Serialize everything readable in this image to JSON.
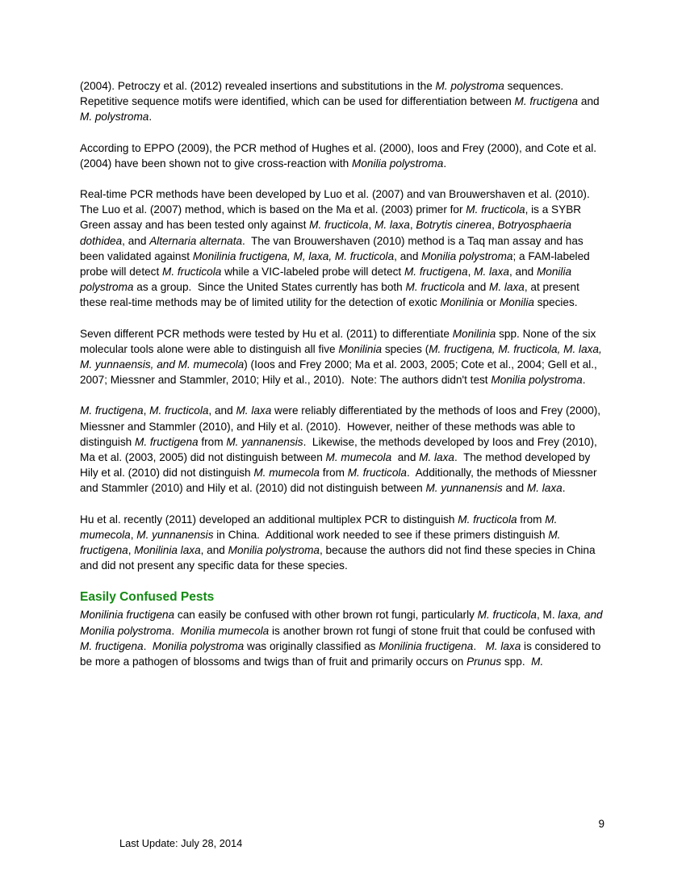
{
  "document": {
    "heading": "Easily Confused Pests",
    "heading_color": "#128a12",
    "footer": {
      "last_update": "Last Update: July 28, 2014",
      "page_number": "9"
    },
    "paragraphs": [
      {
        "segments": [
          {
            "t": "(2004). Petroczy et al. (2012) revealed insertions and substitutions in the "
          },
          {
            "t": "M. polystroma",
            "i": true
          },
          {
            "t": " sequences.  Repetitive sequence motifs were identified, which can be used for differentiation between "
          },
          {
            "t": "M. fructigena",
            "i": true
          },
          {
            "t": " and "
          },
          {
            "t": "M. polystroma",
            "i": true
          },
          {
            "t": "."
          }
        ]
      },
      {
        "segments": [
          {
            "t": "According to EPPO (2009), the PCR method of Hughes et al. (2000), Ioos and Frey (2000), and Cote et al. (2004) have been shown not to give cross-reaction with "
          },
          {
            "t": "Monilia polystroma",
            "i": true
          },
          {
            "t": "."
          }
        ]
      },
      {
        "segments": [
          {
            "t": "Real-time PCR methods have been developed by Luo et al. (2007) and van Brouwershaven et al. (2010).  The Luo et al. (2007) method, which is based on the Ma et al. (2003) primer for "
          },
          {
            "t": "M. fructicola",
            "i": true
          },
          {
            "t": ", is a SYBR Green assay and has been tested only against "
          },
          {
            "t": "M. fructicola",
            "i": true
          },
          {
            "t": ", "
          },
          {
            "t": "M. laxa",
            "i": true
          },
          {
            "t": ", "
          },
          {
            "t": "Botrytis cinerea",
            "i": true
          },
          {
            "t": ", "
          },
          {
            "t": "Botryosphaeria dothidea",
            "i": true
          },
          {
            "t": ", and "
          },
          {
            "t": "Alternaria alternata",
            "i": true
          },
          {
            "t": ".  The van Brouwershaven (2010) method is a Taq man assay and has been validated against "
          },
          {
            "t": "Monilinia fructigena, M, laxa, M. fructicola",
            "i": true
          },
          {
            "t": ", and "
          },
          {
            "t": "Monilia polystroma",
            "i": true
          },
          {
            "t": "; a FAM-labeled probe will detect "
          },
          {
            "t": "M. fructicola",
            "i": true
          },
          {
            "t": " while a VIC-labeled probe will detect "
          },
          {
            "t": "M. fructigena",
            "i": true
          },
          {
            "t": ", "
          },
          {
            "t": "M. laxa",
            "i": true
          },
          {
            "t": ", and "
          },
          {
            "t": "Monilia polystroma",
            "i": true
          },
          {
            "t": " as a group.  Since the United States currently has both "
          },
          {
            "t": "M. fructicola",
            "i": true
          },
          {
            "t": " and "
          },
          {
            "t": "M. laxa",
            "i": true
          },
          {
            "t": ", at present these real-time methods may be of limited utility for the detection of exotic "
          },
          {
            "t": "Monilinia",
            "i": true
          },
          {
            "t": " or "
          },
          {
            "t": "Monilia",
            "i": true
          },
          {
            "t": " species."
          }
        ]
      },
      {
        "segments": [
          {
            "t": "Seven different PCR methods were tested by Hu et al. (2011) to differentiate "
          },
          {
            "t": "Monilinia",
            "i": true
          },
          {
            "t": " spp. None of the six molecular tools alone were able to distinguish all five "
          },
          {
            "t": "Monilinia",
            "i": true
          },
          {
            "t": " species ("
          },
          {
            "t": "M. fructigena, M. fructicola, M. laxa, M. yunnaensis, and M. mumecola",
            "i": true
          },
          {
            "t": ") (Ioos and Frey 2000; Ma et al. 2003, 2005; Cote et al., 2004; Gell et al., 2007; Miessner and Stammler, 2010; Hily et al., 2010).  Note: The authors didn't test "
          },
          {
            "t": "Monilia polystroma",
            "i": true
          },
          {
            "t": "."
          }
        ]
      },
      {
        "segments": [
          {
            "t": "M. fructigena",
            "i": true
          },
          {
            "t": ", "
          },
          {
            "t": "M. fructicola",
            "i": true
          },
          {
            "t": ", and "
          },
          {
            "t": "M. laxa",
            "i": true
          },
          {
            "t": " were reliably differentiated by the methods of Ioos and Frey (2000), Miessner and Stammler (2010), and Hily et al. (2010).  However, neither of these methods was able to distinguish "
          },
          {
            "t": "M. fructigena",
            "i": true
          },
          {
            "t": " from "
          },
          {
            "t": "M. yannanensis",
            "i": true
          },
          {
            "t": ".  Likewise, the methods developed by Ioos and Frey (2010), Ma et al. (2003, 2005) did not distinguish between "
          },
          {
            "t": "M. mumecola",
            "i": true
          },
          {
            "t": "  and "
          },
          {
            "t": "M. laxa",
            "i": true
          },
          {
            "t": ".  The method developed by Hily et al. (2010) did not distinguish "
          },
          {
            "t": "M. mumecola",
            "i": true
          },
          {
            "t": " from "
          },
          {
            "t": "M. fructicola",
            "i": true
          },
          {
            "t": ".  Additionally, the methods of Miessner and Stammler (2010) and Hily et al. (2010) did not distinguish between "
          },
          {
            "t": "M. yunnanensis",
            "i": true
          },
          {
            "t": " and "
          },
          {
            "t": "M. laxa",
            "i": true
          },
          {
            "t": "."
          }
        ]
      },
      {
        "segments": [
          {
            "t": "Hu et al. recently (2011) developed an additional multiplex PCR to distinguish "
          },
          {
            "t": "M. fructicola",
            "i": true
          },
          {
            "t": " from "
          },
          {
            "t": "M. mumecola",
            "i": true
          },
          {
            "t": ", "
          },
          {
            "t": "M. yunnanensis",
            "i": true
          },
          {
            "t": " in China.  Additional work needed to see if these primers distinguish "
          },
          {
            "t": "M. fructigena",
            "i": true
          },
          {
            "t": ", "
          },
          {
            "t": "Monilinia laxa",
            "i": true
          },
          {
            "t": ", and "
          },
          {
            "t": "Monilia polystroma",
            "i": true
          },
          {
            "t": ", because the authors did not find these species in China and did not present any specific data for these species."
          }
        ]
      },
      {
        "segments": [
          {
            "t": "Monilinia fructigena",
            "i": true
          },
          {
            "t": " can easily be confused with other brown rot fungi, particularly "
          },
          {
            "t": "M. fructicola",
            "i": true
          },
          {
            "t": ", M. "
          },
          {
            "t": "laxa, and Monilia polystroma",
            "i": true
          },
          {
            "t": ".  "
          },
          {
            "t": "Monilia mumecola",
            "i": true
          },
          {
            "t": " is another brown rot fungi of stone fruit that could be confused with "
          },
          {
            "t": "M. fructigena",
            "i": true
          },
          {
            "t": ".  "
          },
          {
            "t": "Monilia polystroma",
            "i": true
          },
          {
            "t": " was originally classified as "
          },
          {
            "t": "Monilinia fructigena",
            "i": true
          },
          {
            "t": ".   "
          },
          {
            "t": "M. laxa",
            "i": true
          },
          {
            "t": " is considered to be more a pathogen of blossoms and twigs than of fruit and primarily occurs on "
          },
          {
            "t": "Prunus",
            "i": true
          },
          {
            "t": " spp.  "
          },
          {
            "t": "M.",
            "i": true
          }
        ]
      }
    ]
  }
}
